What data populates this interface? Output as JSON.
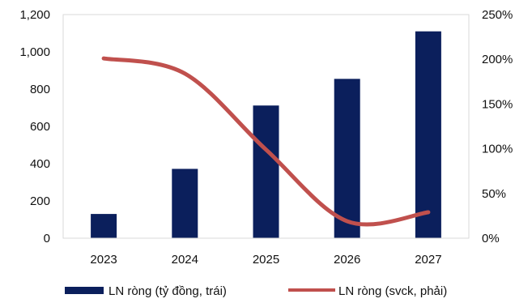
{
  "chart_data": {
    "type": "bar+line",
    "categories": [
      "2023",
      "2024",
      "2025",
      "2026",
      "2027"
    ],
    "left_axis": {
      "ylim": [
        0,
        1200
      ],
      "ticks": [
        0,
        200,
        400,
        600,
        800,
        1000,
        1200
      ],
      "tick_labels": [
        "0",
        "200",
        "400",
        "600",
        "800",
        "1,000",
        "1,200"
      ]
    },
    "right_axis": {
      "ylim": [
        0,
        250
      ],
      "ticks": [
        0,
        50,
        100,
        150,
        200,
        250
      ],
      "tick_labels": [
        "0%",
        "50%",
        "100%",
        "150%",
        "200%",
        "250%"
      ]
    },
    "series": [
      {
        "name": "LN ròng (tỷ đồng, trái)",
        "type": "bar",
        "axis": "left",
        "color": "#0b1f5c",
        "values": [
          130,
          372,
          712,
          855,
          1110
        ]
      },
      {
        "name": "LN ròng (svck, phải)",
        "type": "line",
        "axis": "right",
        "color": "#c0504d",
        "smooth": true,
        "values": [
          201,
          184,
          99,
          19,
          29
        ]
      }
    ],
    "grid": false,
    "legend_position": "bottom"
  }
}
